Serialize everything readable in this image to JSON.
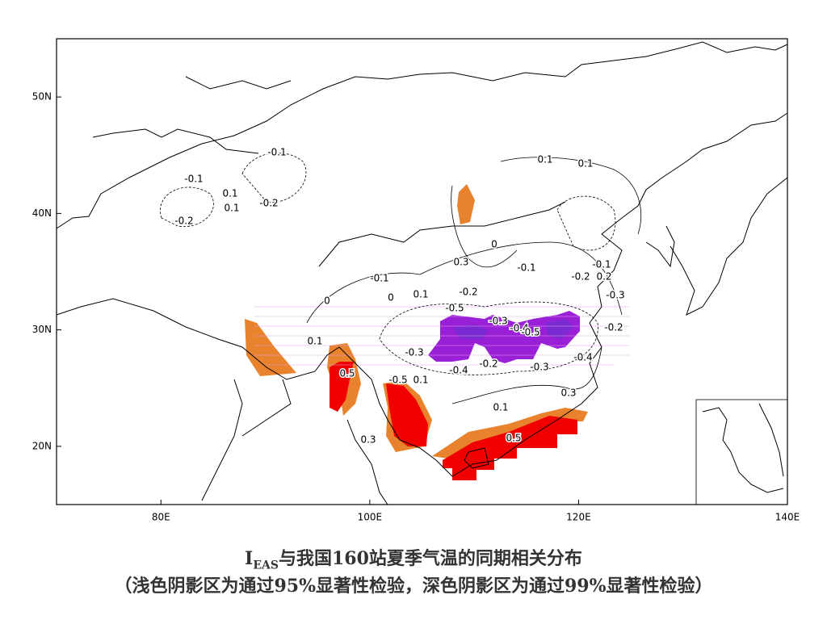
{
  "map": {
    "xlim": [
      70,
      140
    ],
    "ylim": [
      15,
      55
    ],
    "xticks": [
      {
        "value": 80,
        "label": "80E"
      },
      {
        "value": 100,
        "label": "100E"
      },
      {
        "value": 120,
        "label": "120E"
      },
      {
        "value": 140,
        "label": "140E"
      }
    ],
    "yticks": [
      {
        "value": 20,
        "label": "20N"
      },
      {
        "value": 30,
        "label": "30N"
      },
      {
        "value": 40,
        "label": "40N"
      },
      {
        "value": 50,
        "label": "50N"
      }
    ],
    "contour_labels": [
      "-0.1",
      "-0.1",
      "0.1",
      "-0.2",
      "0.1",
      "-0.2",
      "0.1",
      "0.1",
      "0.3",
      "-0.1",
      "0.1",
      "-0.2",
      "-0.1",
      "-0.5",
      "-0.3",
      "-0.4",
      "-0.5",
      "-0.2",
      "0.1",
      "-0.3",
      "-0.4",
      "-0.2",
      "-0.3",
      "-0.4",
      "0.5",
      "-0.5",
      "0.1",
      "0.3",
      "0.1",
      "0.3",
      "0.5",
      "-0.2",
      "0.2",
      "-0.3",
      "-0.1",
      "0",
      "0",
      "0"
    ]
  },
  "caption": {
    "title_main": "I",
    "title_sub": "EAS",
    "title_rest": "与我国160站夏季气温的同期相关分布",
    "note": "（浅色阴影区为通过95%显著性检验，深色阴影区为通过99%显著性检验）"
  }
}
